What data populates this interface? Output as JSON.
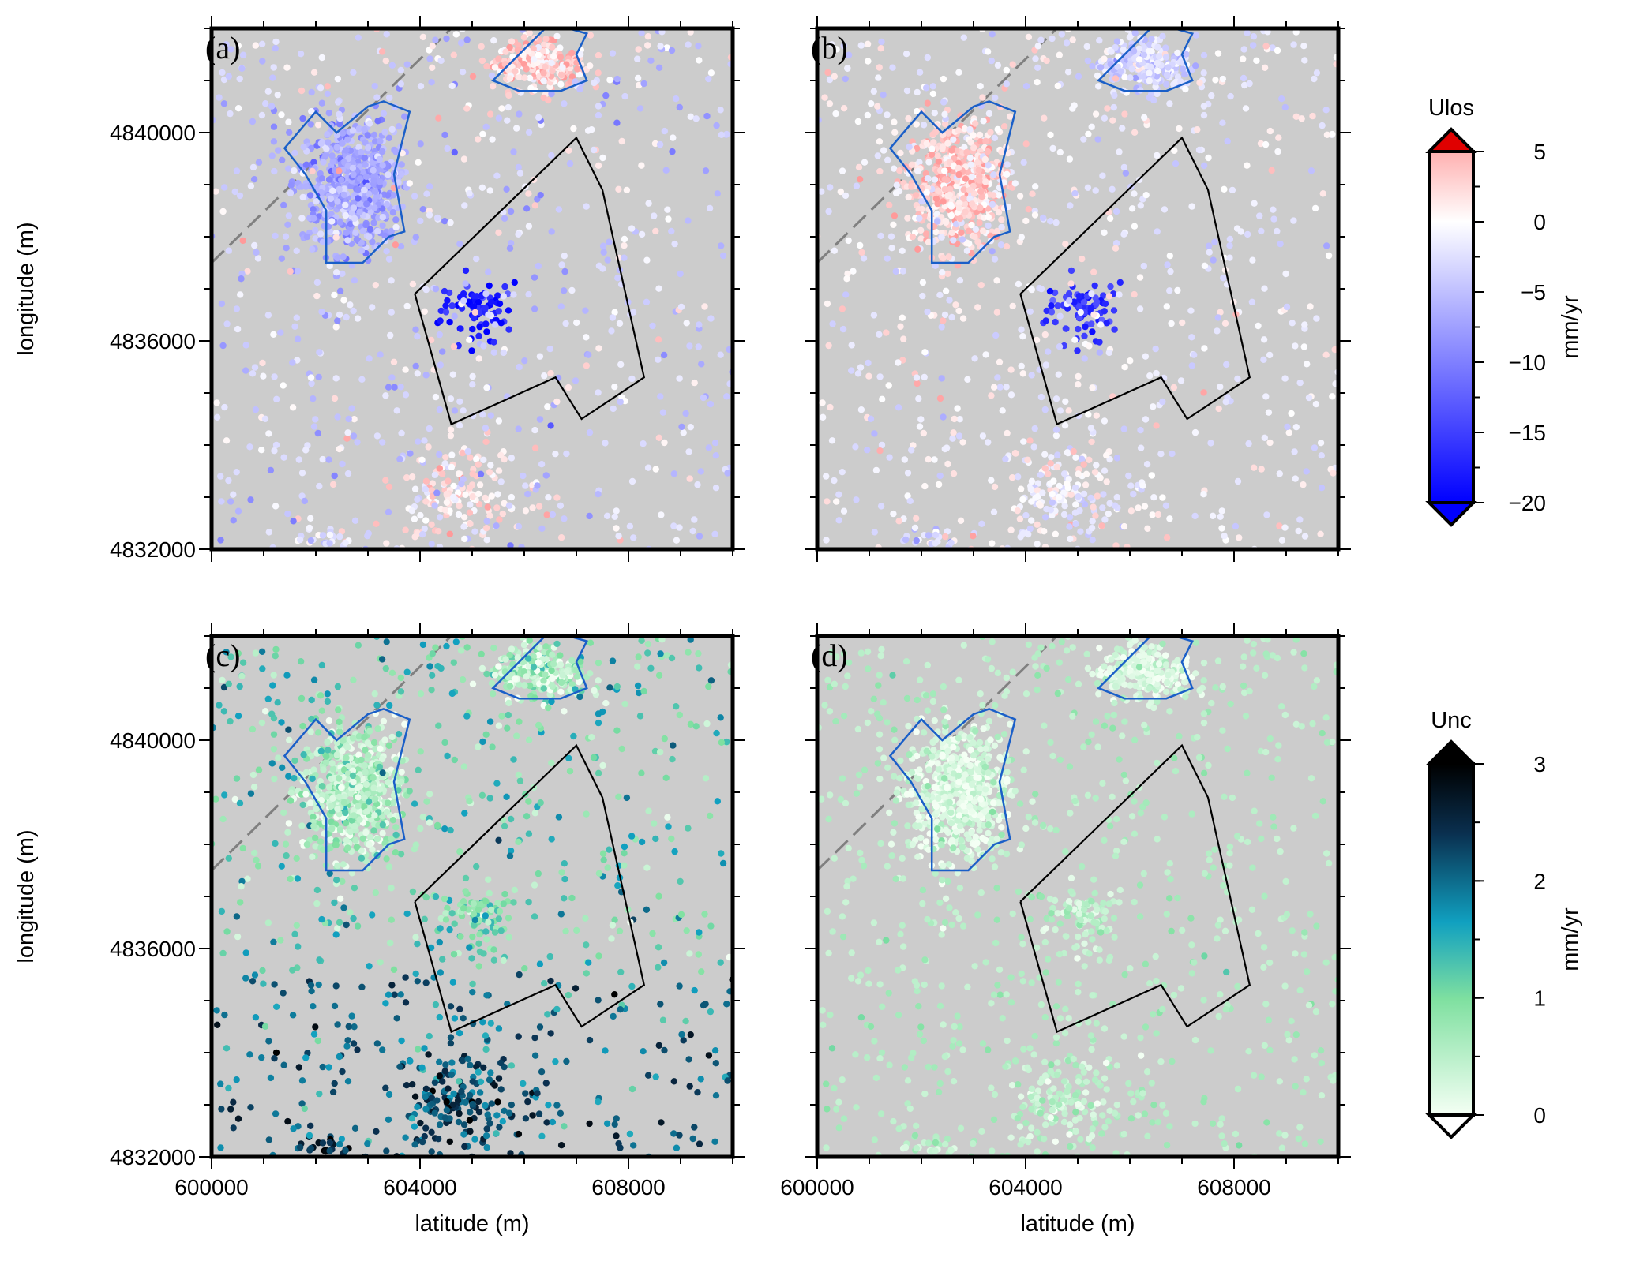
{
  "chart_data": {
    "type": "scatter",
    "xlabel": "latitude (m)",
    "ylabel": "longitude (m)",
    "xlim": [
      600000,
      610000
    ],
    "ylim": [
      4832000,
      4842000
    ],
    "x_ticks": [
      "600000",
      "604000",
      "608000"
    ],
    "y_ticks": [
      "4832000",
      "4836000",
      "4840000"
    ],
    "panels": [
      {
        "label": "(a)",
        "variable": "Ulos",
        "colormap": "blue-white-red"
      },
      {
        "label": "(b)",
        "variable": "Ulos",
        "colormap": "blue-white-red"
      },
      {
        "label": "(c)",
        "variable": "Unc",
        "colormap": "white-green-blue-black"
      },
      {
        "label": "(d)",
        "variable": "Unc",
        "colormap": "white-green-blue-black"
      }
    ],
    "colorbars": [
      {
        "title": "Ulos",
        "unit": "mm/yr",
        "range": [
          -20,
          5
        ],
        "ticks": [
          "5",
          "0",
          "−5",
          "−10",
          "−15",
          "−20"
        ],
        "tick_values": [
          5,
          0,
          -5,
          -10,
          -15,
          -20
        ]
      },
      {
        "title": "Unc",
        "unit": "mm/yr",
        "range": [
          0,
          3
        ],
        "ticks": [
          "3",
          "2",
          "1",
          "0"
        ],
        "tick_values": [
          3,
          2,
          1,
          0
        ]
      }
    ],
    "study_area_polygon": [
      [
        603900,
        4836900
      ],
      [
        607000,
        4839900
      ],
      [
        607500,
        4838900
      ],
      [
        608300,
        4835300
      ],
      [
        607100,
        4834500
      ],
      [
        606600,
        4835300
      ],
      [
        604600,
        4834400
      ],
      [
        603900,
        4836900
      ]
    ],
    "urban_area_1": [
      [
        601400,
        4839700
      ],
      [
        602000,
        4840400
      ],
      [
        602400,
        4840000
      ],
      [
        603000,
        4840500
      ],
      [
        603300,
        4840600
      ],
      [
        603800,
        4840400
      ],
      [
        603500,
        4839200
      ],
      [
        603700,
        4838100
      ],
      [
        603400,
        4838000
      ],
      [
        602900,
        4837500
      ],
      [
        602200,
        4837500
      ],
      [
        602200,
        4838500
      ],
      [
        601800,
        4839200
      ],
      [
        601400,
        4839700
      ]
    ],
    "urban_area_2": [
      [
        605400,
        4841000
      ],
      [
        606000,
        4841600
      ],
      [
        606500,
        4842100
      ],
      [
        607200,
        4841900
      ],
      [
        607000,
        4841500
      ],
      [
        607200,
        4841000
      ],
      [
        606700,
        4840800
      ],
      [
        605900,
        4840800
      ],
      [
        605400,
        4841000
      ]
    ],
    "fault_line": [
      [
        600000,
        4837500
      ],
      [
        604600,
        4842000
      ]
    ],
    "clusters": [
      {
        "cx": 605100,
        "cy": 4836600,
        "sx": 350,
        "sy": 300,
        "n": 80,
        "ulos_a": -18,
        "ulos_b": -16,
        "unc_c": 0.9,
        "unc_d": 0.4
      },
      {
        "cx": 602700,
        "cy": 4839000,
        "sx": 500,
        "sy": 650,
        "n": 600,
        "ulos_a": -7,
        "ulos_b": 2,
        "unc_c": 0.5,
        "unc_d": 0.2
      },
      {
        "cx": 606300,
        "cy": 4841300,
        "sx": 450,
        "sy": 250,
        "n": 250,
        "ulos_a": 2,
        "ulos_b": -3,
        "unc_c": 0.5,
        "unc_d": 0.2
      },
      {
        "cx": 604800,
        "cy": 4833000,
        "sx": 600,
        "sy": 450,
        "n": 150,
        "ulos_a": 1,
        "ulos_b": -1,
        "unc_c": 2.3,
        "unc_d": 0.4
      },
      {
        "cx": 602200,
        "cy": 4832200,
        "sx": 300,
        "sy": 150,
        "n": 25,
        "ulos_a": -2,
        "ulos_b": -3,
        "unc_c": 2.5,
        "unc_d": 0.4
      }
    ],
    "grid": false,
    "legend": "right"
  }
}
